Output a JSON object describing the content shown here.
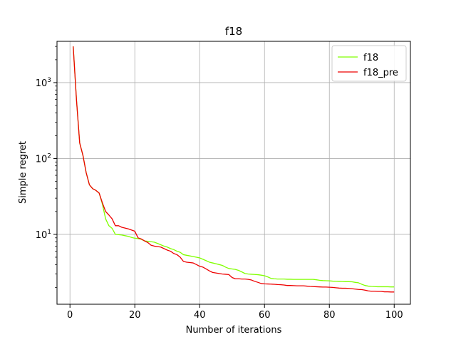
{
  "chart_data": {
    "type": "line",
    "title": "f18",
    "xlabel": "Number of iterations",
    "ylabel": "Simple regret",
    "xlim": [
      -4,
      105
    ],
    "ylim": [
      1.2,
      3500
    ],
    "yscale": "log",
    "grid": true,
    "legend_position": "top-right",
    "x_ticks": [
      0,
      20,
      40,
      60,
      80,
      100
    ],
    "y_ticks": [
      {
        "value": 10,
        "base": "10",
        "exp": "1"
      },
      {
        "value": 100,
        "base": "10",
        "exp": "2"
      },
      {
        "value": 1000,
        "base": "10",
        "exp": "3"
      }
    ],
    "series": [
      {
        "name": "f18",
        "color": "#80ff00",
        "x": [
          1,
          2,
          3,
          4,
          5,
          6,
          7,
          8,
          9,
          10,
          11,
          12,
          13,
          14,
          15,
          16,
          17,
          18,
          19,
          20,
          21,
          22,
          23,
          24,
          25,
          26,
          27,
          28,
          29,
          30,
          31,
          32,
          33,
          34,
          35,
          36,
          37,
          38,
          39,
          40,
          41,
          42,
          43,
          44,
          45,
          46,
          47,
          48,
          49,
          50,
          51,
          52,
          53,
          54,
          55,
          56,
          57,
          58,
          59,
          60,
          61,
          62,
          63,
          64,
          65,
          66,
          67,
          68,
          69,
          70,
          71,
          72,
          73,
          74,
          75,
          76,
          77,
          78,
          79,
          80,
          81,
          82,
          83,
          84,
          85,
          86,
          87,
          88,
          89,
          90,
          91,
          92,
          93,
          94,
          95,
          96,
          97,
          98,
          99,
          100
        ],
        "y": [
          3000,
          600,
          160,
          110,
          65,
          45,
          40,
          38,
          35,
          25,
          16,
          13,
          12,
          10,
          9.9,
          9.8,
          9.6,
          9.4,
          9.1,
          8.9,
          8.8,
          8.6,
          8.2,
          8.1,
          8.0,
          7.9,
          7.6,
          7.3,
          7.0,
          6.8,
          6.5,
          6.3,
          6.0,
          5.8,
          5.4,
          5.3,
          5.2,
          5.1,
          5.0,
          4.9,
          4.7,
          4.5,
          4.3,
          4.2,
          4.1,
          4.0,
          3.9,
          3.7,
          3.55,
          3.5,
          3.45,
          3.35,
          3.2,
          3.05,
          3.0,
          2.98,
          2.96,
          2.94,
          2.9,
          2.85,
          2.75,
          2.63,
          2.6,
          2.58,
          2.58,
          2.58,
          2.56,
          2.56,
          2.55,
          2.55,
          2.55,
          2.55,
          2.55,
          2.55,
          2.55,
          2.52,
          2.48,
          2.46,
          2.45,
          2.44,
          2.42,
          2.41,
          2.4,
          2.39,
          2.38,
          2.38,
          2.37,
          2.33,
          2.3,
          2.2,
          2.12,
          2.08,
          2.06,
          2.05,
          2.04,
          2.04,
          2.04,
          2.04,
          2.03,
          2.03
        ]
      },
      {
        "name": "f18_pre",
        "color": "#ee0000",
        "x": [
          1,
          2,
          3,
          4,
          5,
          6,
          7,
          8,
          9,
          10,
          11,
          12,
          13,
          14,
          15,
          16,
          17,
          18,
          19,
          20,
          21,
          22,
          23,
          24,
          25,
          26,
          27,
          28,
          29,
          30,
          31,
          32,
          33,
          34,
          35,
          36,
          37,
          38,
          39,
          40,
          41,
          42,
          43,
          44,
          45,
          46,
          47,
          48,
          49,
          50,
          51,
          52,
          53,
          54,
          55,
          56,
          57,
          58,
          59,
          60,
          61,
          62,
          63,
          64,
          65,
          66,
          67,
          68,
          69,
          70,
          71,
          72,
          73,
          74,
          75,
          76,
          77,
          78,
          79,
          80,
          81,
          82,
          83,
          84,
          85,
          86,
          87,
          88,
          89,
          90,
          91,
          92,
          93,
          94,
          95,
          96,
          97,
          98,
          99,
          100
        ],
        "y": [
          3000,
          600,
          160,
          110,
          65,
          45,
          40,
          38,
          35,
          26,
          20,
          18,
          16,
          13,
          13,
          12.4,
          12.1,
          11.8,
          11.4,
          11,
          9,
          8.7,
          8.2,
          7.8,
          7.2,
          7.0,
          6.9,
          6.8,
          6.5,
          6.2,
          6.0,
          5.6,
          5.4,
          5.0,
          4.4,
          4.3,
          4.25,
          4.2,
          4.0,
          3.8,
          3.7,
          3.5,
          3.3,
          3.15,
          3.1,
          3.05,
          3.0,
          2.98,
          2.95,
          2.7,
          2.6,
          2.6,
          2.58,
          2.58,
          2.55,
          2.5,
          2.4,
          2.33,
          2.25,
          2.23,
          2.22,
          2.21,
          2.2,
          2.18,
          2.17,
          2.15,
          2.12,
          2.12,
          2.11,
          2.1,
          2.1,
          2.1,
          2.08,
          2.06,
          2.05,
          2.04,
          2.03,
          2.02,
          2.02,
          2.01,
          2.0,
          1.98,
          1.96,
          1.95,
          1.95,
          1.94,
          1.92,
          1.9,
          1.88,
          1.87,
          1.84,
          1.8,
          1.78,
          1.78,
          1.77,
          1.77,
          1.75,
          1.75,
          1.74,
          1.74
        ]
      }
    ]
  }
}
